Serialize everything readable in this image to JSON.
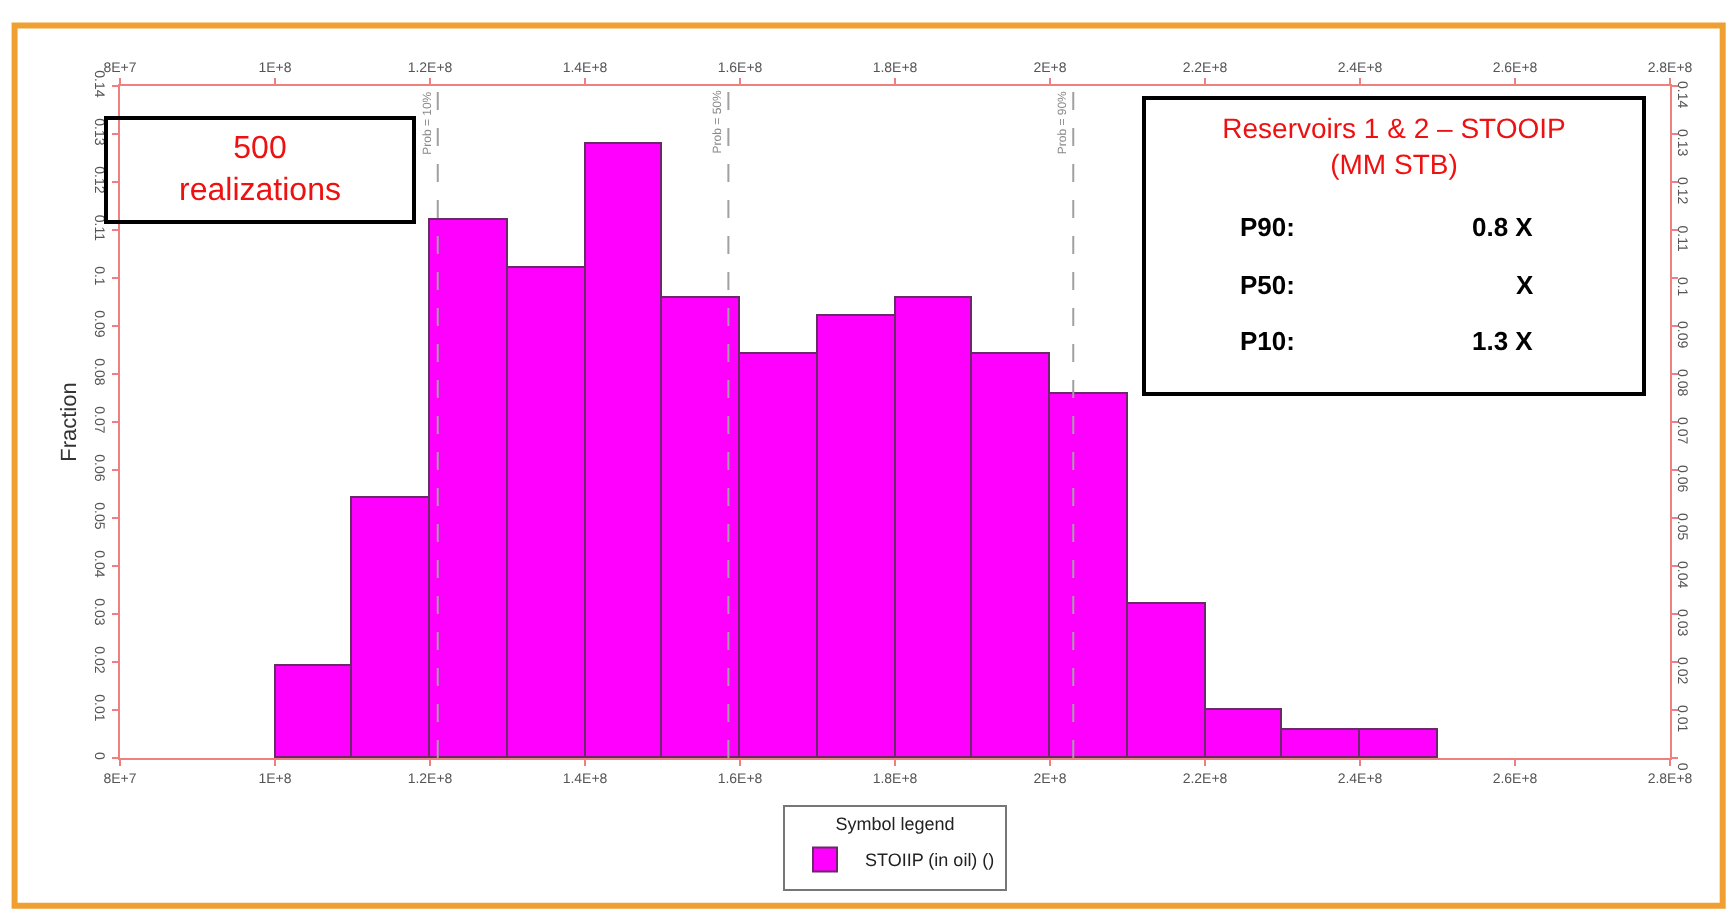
{
  "chart_data": {
    "type": "histogram",
    "ylabel": "Fraction",
    "bins": [
      100000000,
      110000000,
      120000000,
      130000000,
      140000000,
      150000000,
      160000000,
      170000000,
      180000000,
      190000000,
      200000000,
      210000000,
      220000000,
      230000000,
      240000000,
      250000000
    ],
    "series": [
      {
        "name": "STOIIP (in oil) ()",
        "color": "#ff00ff",
        "values": [
          0.019,
          0.054,
          0.112,
          0.102,
          0.128,
          0.096,
          0.084,
          0.092,
          0.096,
          0.084,
          0.076,
          0.032,
          0.01,
          0.006,
          0.006
        ]
      }
    ],
    "legend_title": "Symbol legend",
    "legend": "bottom",
    "xlim": [
      80000000,
      280000000
    ],
    "xticks": [
      {
        "value": 80000000,
        "label": "8E+7"
      },
      {
        "value": 100000000,
        "label": "1E+8"
      },
      {
        "value": 120000000,
        "label": "1.2E+8"
      },
      {
        "value": 140000000,
        "label": "1.4E+8"
      },
      {
        "value": 160000000,
        "label": "1.6E+8"
      },
      {
        "value": 180000000,
        "label": "1.8E+8"
      },
      {
        "value": 200000000,
        "label": "2E+8"
      },
      {
        "value": 220000000,
        "label": "2.2E+8"
      },
      {
        "value": 240000000,
        "label": "2.4E+8"
      },
      {
        "value": 260000000,
        "label": "2.6E+8"
      },
      {
        "value": 280000000,
        "label": "2.8E+8"
      }
    ],
    "x2lim": [
      80000000,
      280000000
    ],
    "x2ticks": [
      {
        "value": 80000000,
        "label": "8E+7"
      },
      {
        "value": 100000000,
        "label": "1E+8"
      },
      {
        "value": 120000000,
        "label": "1.2E+8"
      },
      {
        "value": 140000000,
        "label": "1.4E+8"
      },
      {
        "value": 160000000,
        "label": "1.6E+8"
      },
      {
        "value": 180000000,
        "label": "1.8E+8"
      },
      {
        "value": 200000000,
        "label": "2E+8"
      },
      {
        "value": 220000000,
        "label": "2.2E+8"
      },
      {
        "value": 240000000,
        "label": "2.4E+8"
      },
      {
        "value": 260000000,
        "label": "2.6E+8"
      },
      {
        "value": 280000000,
        "label": "2.8E+8"
      }
    ],
    "ylim": [
      0,
      0.14
    ],
    "yticks": [
      0,
      0.01,
      0.02,
      0.03,
      0.04,
      0.05,
      0.06,
      0.07,
      0.08,
      0.09,
      0.1,
      0.11,
      0.12,
      0.13,
      0.14
    ],
    "y2lim": [
      0,
      0.14
    ],
    "y2ticks": [
      0,
      0.01,
      0.02,
      0.03,
      0.04,
      0.05,
      0.06,
      0.07,
      0.08,
      0.09,
      0.1,
      0.11,
      0.12,
      0.13,
      0.14
    ],
    "ref_lines": [
      {
        "axis": "x",
        "value": 121000000,
        "color": "#a0a0a0",
        "line_style": "dashed"
      },
      {
        "axis": "x",
        "value": 158500000,
        "color": "#a0a0a0",
        "line_style": "dashed"
      },
      {
        "axis": "x",
        "value": 203000000,
        "color": "#a0a0a0",
        "line_style": "dashed"
      }
    ],
    "annotations": [
      "500\nrealizations",
      "Reservoirs 1 & 2 – STOOIP\n(MM STB)",
      "P90: 0.8 X",
      "P50: X",
      "P10: 1.3 X",
      {
        "text": "Prob = 10%",
        "x": 121000000,
        "y": 0.14
      },
      {
        "text": "Prob = 50%",
        "x": 158500000,
        "y": 0.14
      },
      {
        "text": "Prob = 90%",
        "x": 203000000,
        "y": 0.14
      }
    ]
  }
}
